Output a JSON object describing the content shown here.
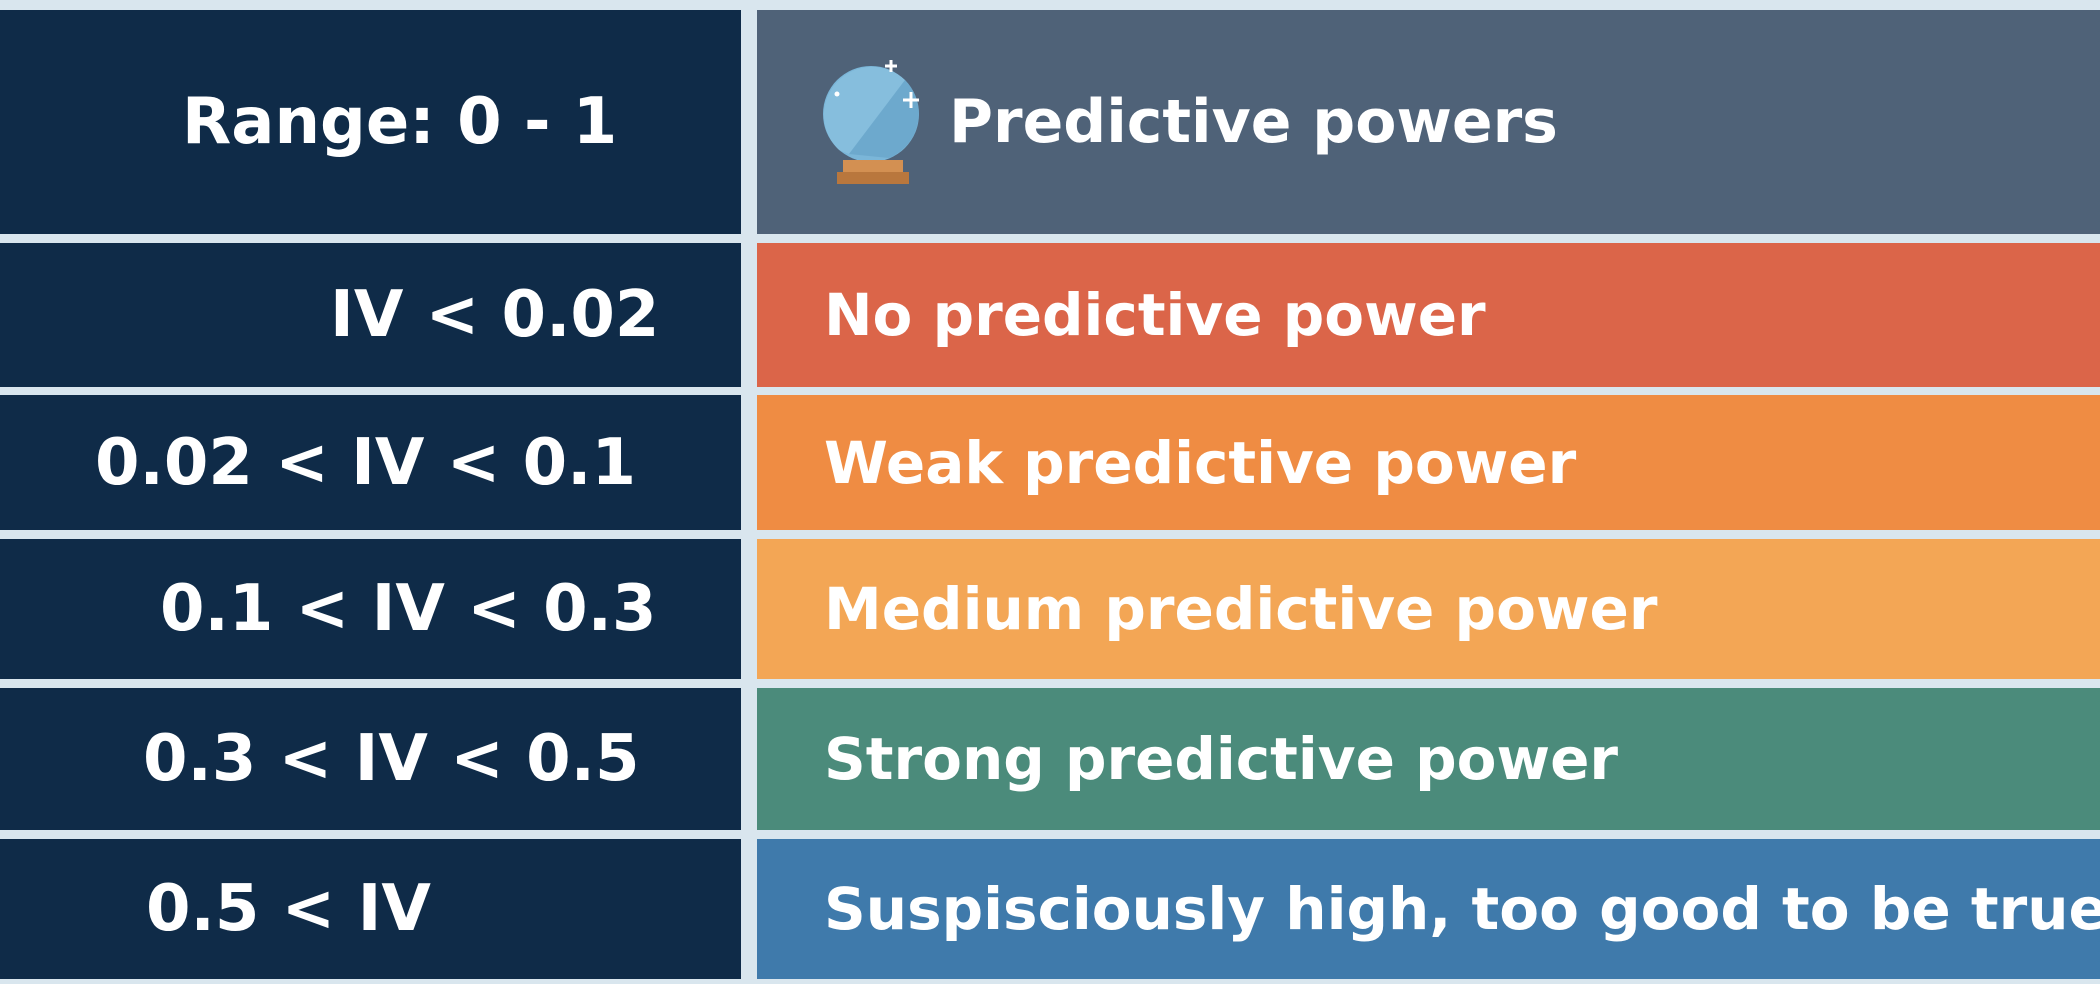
{
  "header": {
    "range_label": "Range: 0 - 1",
    "title": "Predictive powers",
    "icon": "crystal-ball-icon",
    "left_bg": "#0f2b48",
    "right_bg": "#4f6278"
  },
  "rows": [
    {
      "condition": "IV < 0.02",
      "meaning": "No predictive power",
      "color": "#db6549"
    },
    {
      "condition": "0.02 < IV < 0.1",
      "meaning": "Weak predictive power",
      "color": "#ef8c43"
    },
    {
      "condition": "0.1 < IV < 0.3",
      "meaning": "Medium predictive power",
      "color": "#f3a655"
    },
    {
      "condition": "0.3 < IV < 0.5",
      "meaning": "Strong predictive power",
      "color": "#4b8b7b"
    },
    {
      "condition": "0.5 < IV",
      "meaning": "Suspisciously high, too good to be true",
      "color": "#3f7aab"
    }
  ]
}
